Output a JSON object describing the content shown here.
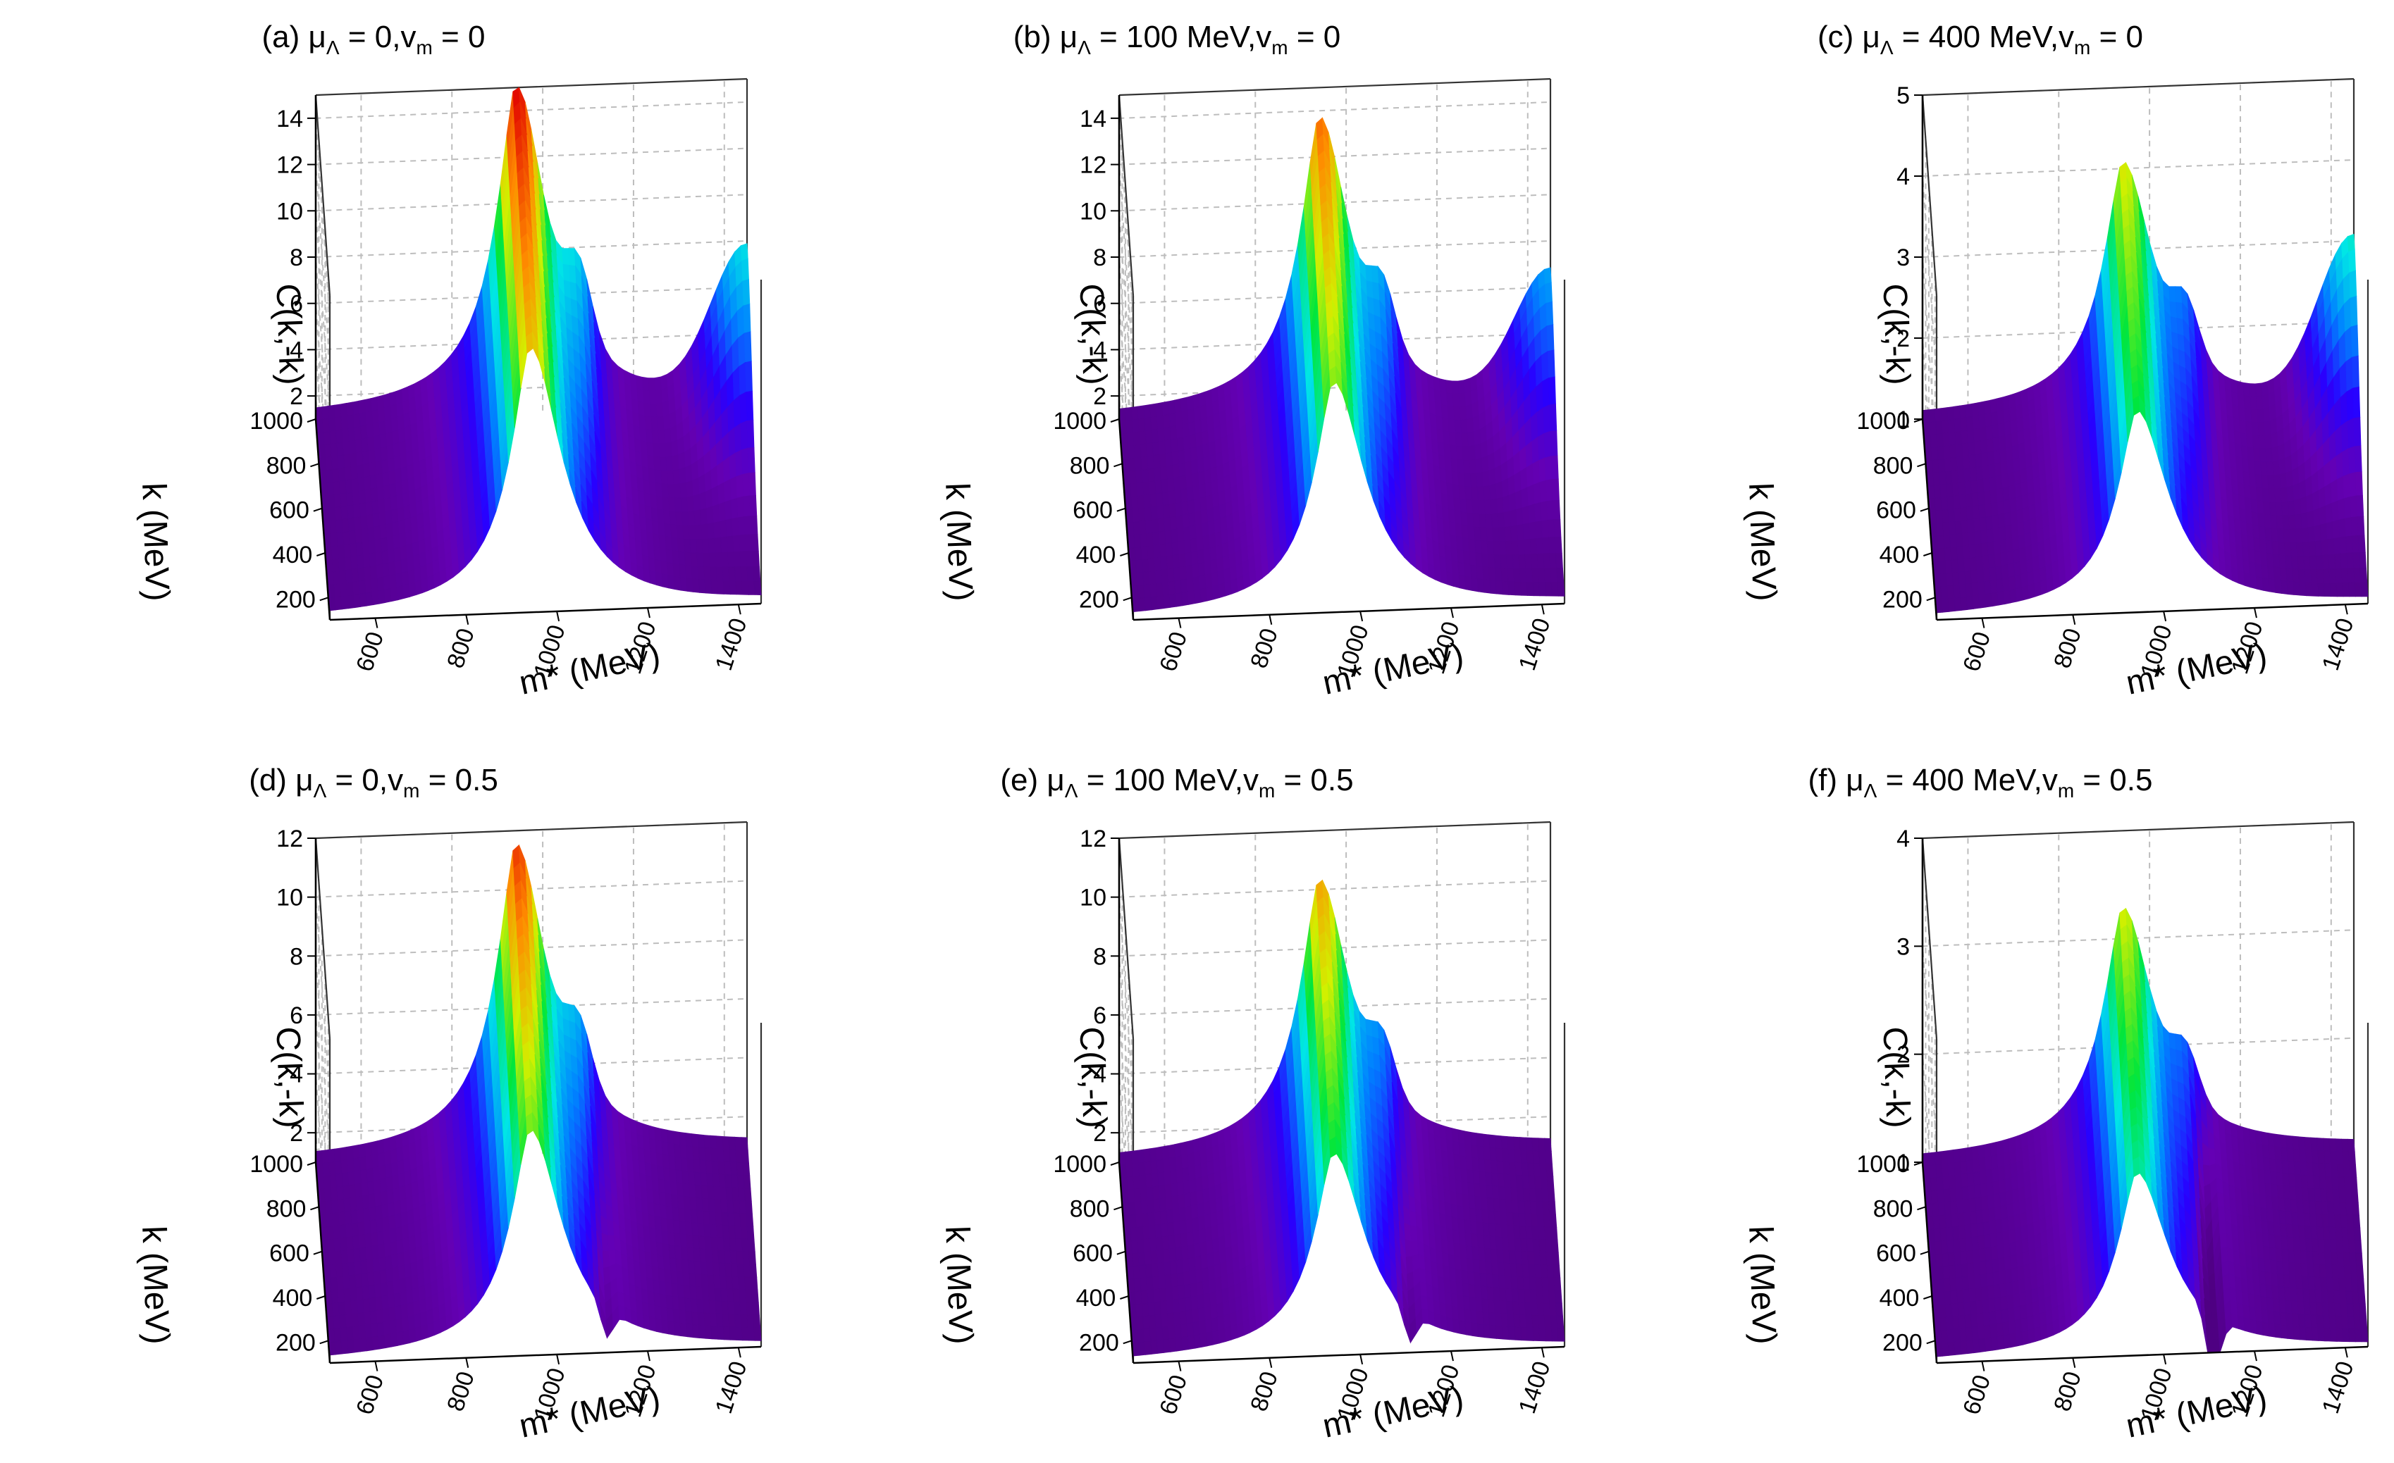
{
  "figure": {
    "rows": 2,
    "cols": 3
  },
  "panels": [
    {
      "id": "a",
      "label": "(a)",
      "mu_lambda": "0",
      "v_m": "0"
    },
    {
      "id": "b",
      "label": "(b)",
      "mu_lambda": "100 MeV",
      "v_m": "0"
    },
    {
      "id": "c",
      "label": "(c)",
      "mu_lambda": "400 MeV",
      "v_m": "0"
    },
    {
      "id": "d",
      "label": "(d)",
      "mu_lambda": "0",
      "v_m": "0.5"
    },
    {
      "id": "e",
      "label": "(e)",
      "mu_lambda": "100 MeV",
      "v_m": "0.5"
    },
    {
      "id": "f",
      "label": "(f)",
      "mu_lambda": "400 MeV",
      "v_m": "0.5"
    }
  ],
  "symbols": {
    "mu": "μ",
    "lambda": "Λ",
    "v": "v",
    "m": "m",
    "eq": " = ",
    "comma": ","
  },
  "chart_data": [
    {
      "type": "surface",
      "panel": "a",
      "title": "(a) μΛ = 0,vm = 0",
      "xlabel": "m* (MeV)",
      "ylabel": "k (MeV)",
      "zlabel": "C(k,-k)",
      "xlim": [
        500,
        1450
      ],
      "ylim": [
        100,
        1000
      ],
      "zlim": [
        1,
        15
      ],
      "xticks": [
        600,
        800,
        1000,
        1200,
        1400
      ],
      "yticks": [
        200,
        400,
        600,
        800,
        1000
      ],
      "zticks": [
        2,
        4,
        6,
        8,
        10,
        12,
        14
      ],
      "peaks": [
        {
          "m": 940,
          "k_low": 12.5,
          "k_high": 15.2
        },
        {
          "m": 1450,
          "value": 7.5
        }
      ],
      "edge_rise": true,
      "dip": false
    },
    {
      "type": "surface",
      "panel": "b",
      "title": "(b) μΛ = 100 MeV,vm = 0",
      "xlabel": "m* (MeV)",
      "ylabel": "k (MeV)",
      "zlabel": "C(k,-k)",
      "xlim": [
        500,
        1450
      ],
      "ylim": [
        100,
        1000
      ],
      "zlim": [
        1,
        15
      ],
      "xticks": [
        600,
        800,
        1000,
        1200,
        1400
      ],
      "yticks": [
        200,
        400,
        600,
        800,
        1000
      ],
      "zticks": [
        2,
        4,
        6,
        8,
        10,
        12,
        14
      ],
      "peaks": [
        {
          "m": 940,
          "k_low": 11.0,
          "k_high": 13.8
        },
        {
          "m": 1450,
          "value": 6.5
        }
      ],
      "edge_rise": true,
      "dip": false
    },
    {
      "type": "surface",
      "panel": "c",
      "title": "(c) μΛ = 400 MeV,vm = 0",
      "xlabel": "m* (MeV)",
      "ylabel": "k (MeV)",
      "zlabel": "C(k,-k)",
      "xlim": [
        500,
        1450
      ],
      "ylim": [
        100,
        1000
      ],
      "zlim": [
        1,
        5
      ],
      "xticks": [
        600,
        800,
        1000,
        1200,
        1400
      ],
      "yticks": [
        200,
        400,
        600,
        800,
        1000
      ],
      "zticks": [
        1,
        2,
        3,
        4,
        5
      ],
      "peaks": [
        {
          "m": 940,
          "k_low": 3.5,
          "k_high": 4.1
        },
        {
          "m": 1450,
          "value": 3.0
        }
      ],
      "edge_rise": true,
      "dip": false
    },
    {
      "type": "surface",
      "panel": "d",
      "title": "(d) μΛ = 0,vm = 0.5",
      "xlabel": "m* (MeV)",
      "ylabel": "k (MeV)",
      "zlabel": "C(k,-k)",
      "xlim": [
        500,
        1450
      ],
      "ylim": [
        100,
        1000
      ],
      "zlim": [
        1,
        12
      ],
      "xticks": [
        600,
        800,
        1000,
        1200,
        1400
      ],
      "yticks": [
        200,
        400,
        600,
        800,
        1000
      ],
      "zticks": [
        2,
        4,
        6,
        8,
        10,
        12
      ],
      "peaks": [
        {
          "m": 940,
          "k_low": 8.7,
          "k_high": 11.6
        }
      ],
      "edge_rise": false,
      "dip": true
    },
    {
      "type": "surface",
      "panel": "e",
      "title": "(e) μΛ = 100 MeV,vm = 0.5",
      "xlabel": "m* (MeV)",
      "ylabel": "k (MeV)",
      "zlabel": "C(k,-k)",
      "xlim": [
        500,
        1450
      ],
      "ylim": [
        100,
        1000
      ],
      "zlim": [
        1,
        12
      ],
      "xticks": [
        600,
        800,
        1000,
        1200,
        1400
      ],
      "yticks": [
        200,
        400,
        600,
        800,
        1000
      ],
      "zticks": [
        2,
        4,
        6,
        8,
        10,
        12
      ],
      "peaks": [
        {
          "m": 940,
          "k_low": 7.9,
          "k_high": 10.4
        }
      ],
      "edge_rise": false,
      "dip": true
    },
    {
      "type": "surface",
      "panel": "f",
      "title": "(f) μΛ = 400 MeV,vm = 0.5",
      "xlabel": "m* (MeV)",
      "ylabel": "k (MeV)",
      "zlabel": "C(k,-k)",
      "xlim": [
        500,
        1450
      ],
      "ylim": [
        100,
        1000
      ],
      "zlim": [
        1,
        4
      ],
      "xticks": [
        600,
        800,
        1000,
        1200,
        1400
      ],
      "yticks": [
        200,
        400,
        600,
        800,
        1000
      ],
      "zticks": [
        1,
        2,
        3,
        4
      ],
      "peaks": [
        {
          "m": 940,
          "k_low": 2.7,
          "k_high": 3.3
        }
      ],
      "edge_rise": false,
      "dip": true
    }
  ]
}
